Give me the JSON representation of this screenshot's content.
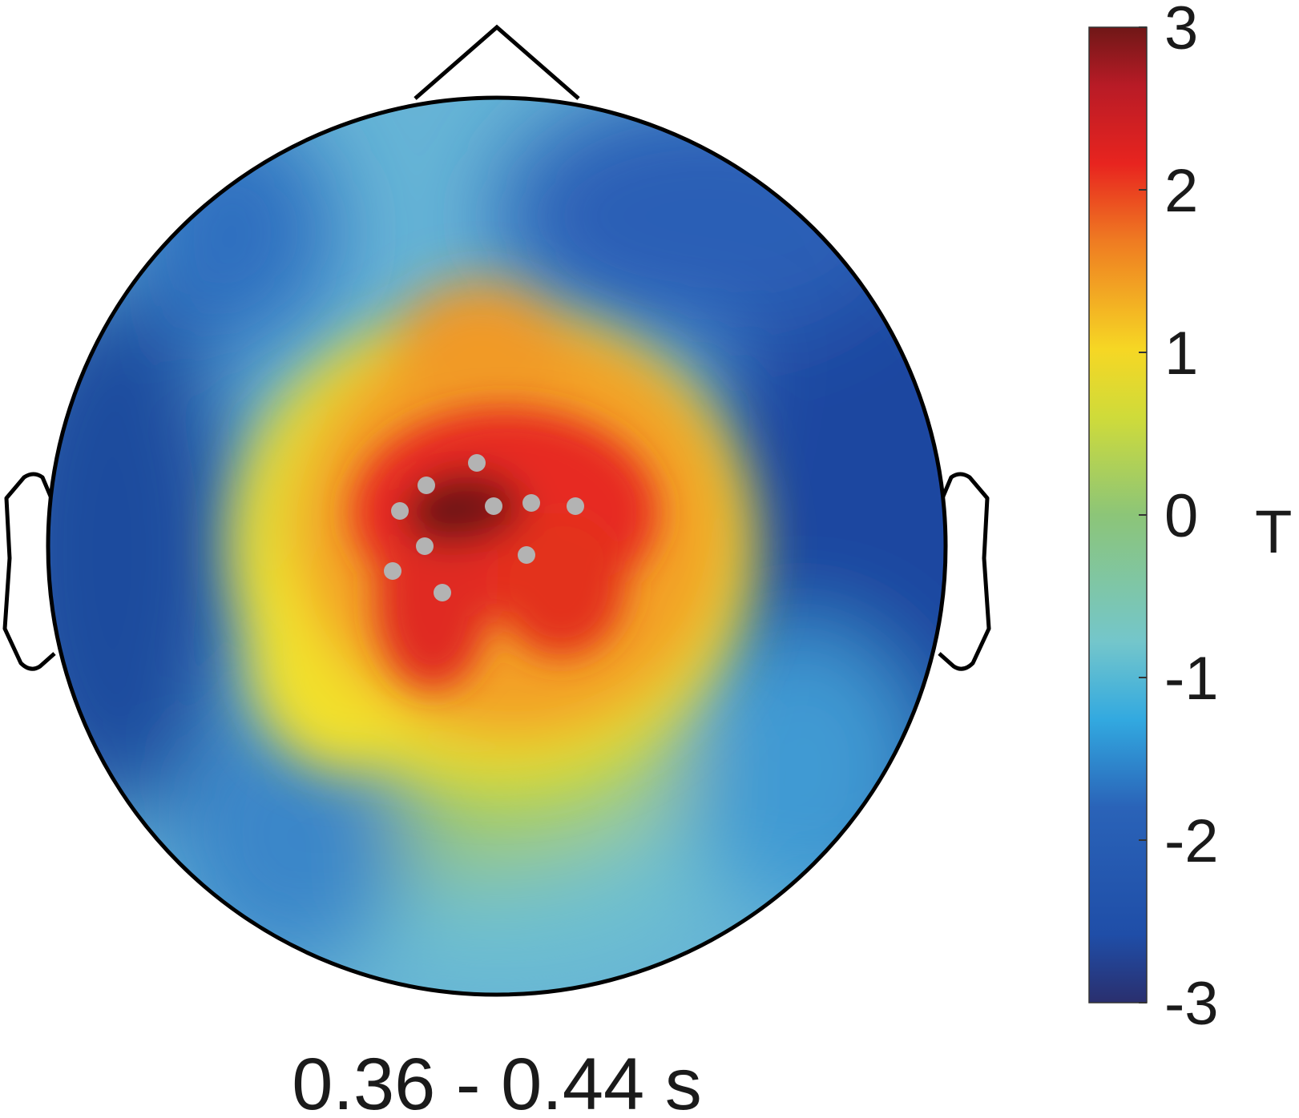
{
  "chart_data": {
    "type": "heatmap",
    "subtype": "scalp topography",
    "time_window_label": "0.36 - 0.44 s",
    "colorbar": {
      "label": "T",
      "ticks": [
        3,
        2,
        1,
        0,
        -1,
        -2,
        -3
      ],
      "tick_labels": [
        "3",
        "2",
        "1",
        "0",
        "-1",
        "-2",
        "-3"
      ],
      "range": [
        -3,
        3
      ],
      "colormap": "jet-like",
      "colors": [
        "#2a2f6e",
        "#1f4ea8",
        "#3a74c4",
        "#2fb2e3",
        "#77c8c8",
        "#a6cf5a",
        "#f2e62b",
        "#f6a31f",
        "#ea3b1e",
        "#d41c22",
        "#6f1717"
      ]
    },
    "field": {
      "peak_value": 3.0,
      "peak_region": "central, slightly left of midline",
      "min_value": -3.0,
      "min_regions": [
        "left temporal",
        "right temporal",
        "right frontal"
      ]
    },
    "highlighted_sensor_count": 10,
    "sensor_color": "#b3b3b3",
    "outline_color": "#000000"
  }
}
